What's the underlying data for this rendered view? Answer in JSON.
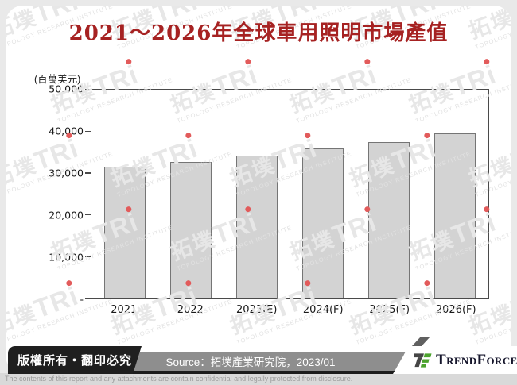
{
  "chart_data": {
    "type": "bar",
    "title": "2021～2026年全球車用照明市場產值",
    "unit_label": "(百萬美元)",
    "categories": [
      "2021",
      "2022",
      "2023(E)",
      "2024(F)",
      "2025(F)",
      "2026(F)"
    ],
    "values": [
      31600,
      32700,
      34300,
      36000,
      37500,
      39600
    ],
    "ylim": [
      0,
      50000
    ],
    "ytick_labels": [
      "50,000",
      "40,000",
      "30,000",
      "20,000",
      "10,000",
      "-"
    ],
    "xlabel": "",
    "ylabel": "百萬美元",
    "grid": false,
    "legend": false,
    "bar_color": "#d3d3d3",
    "bar_border_color": "#757575"
  },
  "watermark": {
    "cjk": "拓墣",
    "latin": "TRi",
    "subtext": "TOPOLOGY RESEARCH INSTITUTE"
  },
  "footer": {
    "copyright": "版權所有‧翻印必究",
    "source": "Source：拓墣產業研究院，2023/01",
    "brand": "TrendForce",
    "disclaimer": "The contents of this report and any attachments are contain confidential and legally protected from disclosure."
  },
  "colors": {
    "title_red": "#a62222",
    "brand_green": "#4ca32d",
    "brand_dark": "#454545",
    "watermark_gray": "#e7e7e7",
    "watermark_dot_red": "#e25b5b"
  }
}
